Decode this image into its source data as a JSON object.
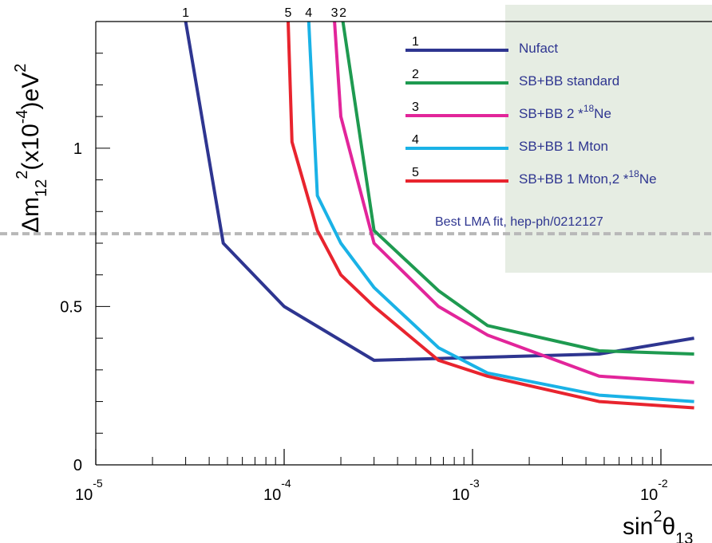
{
  "chart_data": {
    "type": "line",
    "x_scale": "log",
    "xlim": [
      1e-05,
      0.015
    ],
    "ylim": [
      0,
      1.4
    ],
    "grid": false,
    "legend_placement": "top-right",
    "x_ticks": [
      {
        "value": 1e-05,
        "base": "10",
        "exp": "-5"
      },
      {
        "value": 0.0001,
        "base": "10",
        "exp": "-4"
      },
      {
        "value": 0.001,
        "base": "10",
        "exp": "-3"
      },
      {
        "value": 0.01,
        "base": "10",
        "exp": "-2"
      }
    ],
    "y_ticks": [
      {
        "value": 0,
        "label": "0"
      },
      {
        "value": 0.5,
        "label": "0.5"
      },
      {
        "value": 1,
        "label": "1"
      }
    ],
    "xlabel": {
      "base": "sin",
      "sup": "2",
      "greek": "θ",
      "sub": "13"
    },
    "ylabel": {
      "delta": "Δm",
      "sub": "12",
      "sup2": "2",
      "open": "(x10",
      "exp": "-4",
      "close": ")eV",
      "sup_end": "2"
    },
    "reference_line": {
      "y": 0.73,
      "label": "Best LMA fit,  hep-ph/0212127",
      "color": "#b8b8b8"
    },
    "legend_background": "#e6ede3",
    "series": [
      {
        "id": "1",
        "name_pre": "Nufact",
        "name_sup": "",
        "name_post": "",
        "color": "#2e3590",
        "x": [
          3e-05,
          4.75e-05,
          0.0001,
          0.0003,
          0.0047,
          0.015
        ],
        "y": [
          1.4,
          0.7,
          0.5,
          0.33,
          0.35,
          0.4
        ]
      },
      {
        "id": "2",
        "name_pre": "SB+BB standard",
        "name_sup": "",
        "name_post": "",
        "color": "#1e9a50",
        "x": [
          0.000205,
          0.0003,
          0.00066,
          0.0012,
          0.0047,
          0.015
        ],
        "y": [
          1.4,
          0.74,
          0.55,
          0.44,
          0.36,
          0.35
        ]
      },
      {
        "id": "3",
        "name_pre": "SB+BB 2  *",
        "name_sup": "18",
        "name_post": "Ne",
        "color": "#e2259a",
        "x": [
          0.000185,
          0.0002,
          0.0003,
          0.00066,
          0.0012,
          0.0047,
          0.015
        ],
        "y": [
          1.4,
          1.1,
          0.7,
          0.5,
          0.41,
          0.28,
          0.26
        ]
      },
      {
        "id": "4",
        "name_pre": "SB+BB 1 Mton",
        "name_sup": "",
        "name_post": "",
        "color": "#1ab2e6",
        "x": [
          0.000135,
          0.00015,
          0.0002,
          0.0003,
          0.00066,
          0.0012,
          0.0047,
          0.015
        ],
        "y": [
          1.4,
          0.85,
          0.7,
          0.56,
          0.37,
          0.29,
          0.22,
          0.2
        ]
      },
      {
        "id": "5",
        "name_pre": "SB+BB 1 Mton,2   *",
        "name_sup": "18",
        "name_post": "Ne",
        "color": "#e8242e",
        "x": [
          0.000105,
          0.00011,
          0.00015,
          0.0002,
          0.0003,
          0.00066,
          0.0012,
          0.0047,
          0.015
        ],
        "y": [
          1.4,
          1.02,
          0.74,
          0.6,
          0.5,
          0.33,
          0.28,
          0.2,
          0.18
        ]
      }
    ],
    "curve_labels": [
      {
        "id": "1",
        "x": 3e-05
      },
      {
        "id": "5",
        "x": 0.000105
      },
      {
        "id": "4",
        "x": 0.000135
      },
      {
        "id": "3",
        "x": 0.000185
      },
      {
        "id": "2",
        "x": 0.000205
      }
    ]
  }
}
